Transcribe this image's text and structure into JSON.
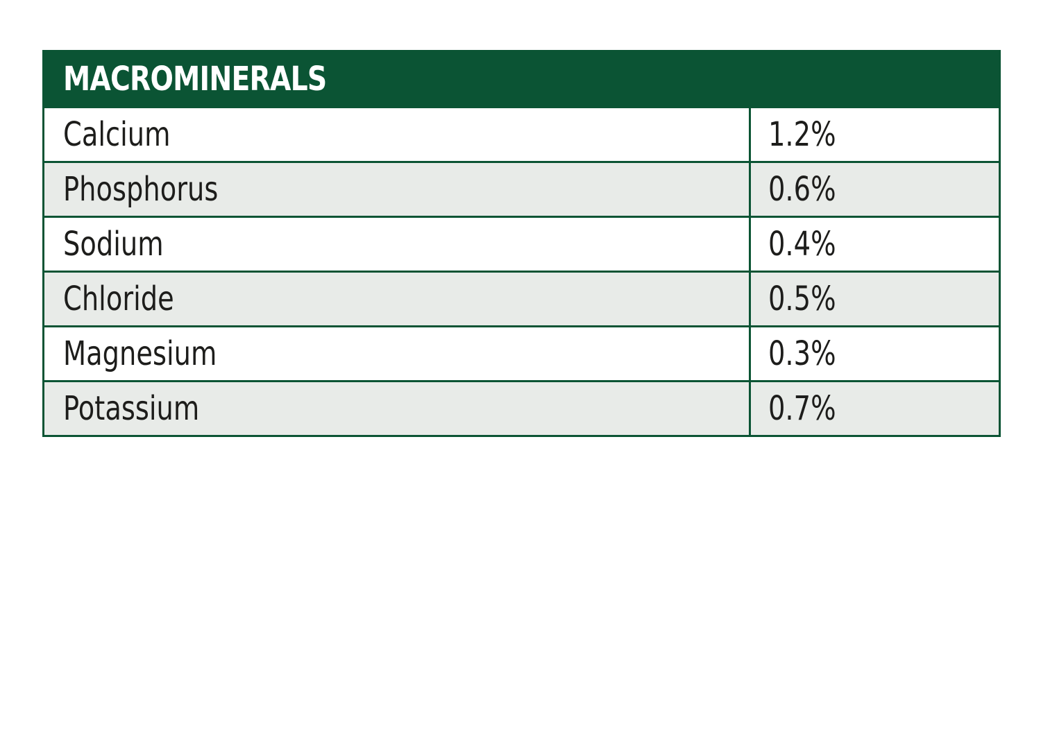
{
  "table": {
    "title": "MACROMINERALS",
    "header_bg": "#0b5434",
    "rows": [
      {
        "name": "Calcium",
        "value": "1.2%"
      },
      {
        "name": "Phosphorus",
        "value": "0.6%"
      },
      {
        "name": "Sodium",
        "value": "0.4%"
      },
      {
        "name": "Chloride",
        "value": "0.5%"
      },
      {
        "name": "Magnesium",
        "value": "0.3%"
      },
      {
        "name": "Potassium",
        "value": "0.7%"
      }
    ]
  }
}
